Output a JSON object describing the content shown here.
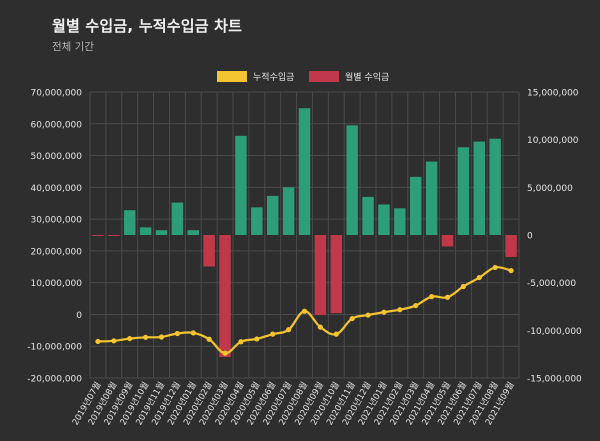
{
  "header": {
    "title": "월별 수입금, 누적수입금 차트",
    "subtitle": "전체 기간"
  },
  "colors": {
    "background": "#2e2e2e",
    "grid": "#4a4a4a",
    "line": "#f4c431",
    "bar_positive": "#2e9e7a",
    "bar_negative": "#c0394a",
    "text": "#e6e6e6"
  },
  "chart_data": {
    "type": "bar",
    "categories": [
      "2019년07월",
      "2019년08월",
      "2019년09월",
      "2019년10월",
      "2019년11월",
      "2019년12월",
      "2020년01월",
      "2020년02월",
      "2020년03월",
      "2020년04월",
      "2020년05월",
      "2020년06월",
      "2020년07월",
      "2020년08월",
      "2020년09월",
      "2020년10월",
      "2020년11월",
      "2020년12월",
      "2021년01월",
      "2021년02월",
      "2021년03월",
      "2021년04월",
      "2021년05월",
      "2021년06월",
      "2021년07월",
      "2021년08월",
      "2021년09월"
    ],
    "legend": {
      "position": "top",
      "entries": [
        "누적수입금",
        "월별 수익금"
      ]
    },
    "series": [
      {
        "name": "누적수입금",
        "type": "line",
        "axis": "left",
        "values": [
          -8500000,
          -8300000,
          -7600000,
          -7200000,
          -7100000,
          -6000000,
          -5800000,
          -7800000,
          -12200000,
          -8600000,
          -7700000,
          -6200000,
          -4800000,
          1000000,
          -4000000,
          -6200000,
          -1300000,
          -200000,
          700000,
          1500000,
          2800000,
          5600000,
          5400000,
          8800000,
          11600000,
          14800000,
          13800000
        ]
      },
      {
        "name": "월별 수익금",
        "type": "bar",
        "axis": "right",
        "values": [
          -100000,
          -50000,
          2600000,
          800000,
          500000,
          3400000,
          500000,
          -3300000,
          -12800000,
          10400000,
          2900000,
          4100000,
          5000000,
          13300000,
          -8400000,
          -8200000,
          11500000,
          4000000,
          3200000,
          2800000,
          6100000,
          7700000,
          -1200000,
          9200000,
          9800000,
          10100000,
          -2300000
        ]
      }
    ],
    "y_left": {
      "min": -20000000,
      "max": 70000000,
      "ticks": [
        70000000,
        60000000,
        50000000,
        40000000,
        30000000,
        20000000,
        10000000,
        0,
        -10000000,
        -20000000
      ],
      "tick_labels": [
        "70,000,000",
        "60,000,000",
        "50,000,000",
        "40,000,000",
        "30,000,000",
        "20,000,000",
        "10,000,000",
        "0",
        "-10,000,000",
        "-20,000,000"
      ]
    },
    "y_right": {
      "min": -15000000,
      "max": 15000000,
      "ticks": [
        15000000,
        10000000,
        5000000,
        0,
        -5000000,
        -10000000,
        -15000000
      ],
      "tick_labels": [
        "15,000,000",
        "10,000,000",
        "5,000,000",
        "0",
        "-5,000,000",
        "-10,000,000",
        "-15,000,000"
      ]
    },
    "grid": true
  }
}
